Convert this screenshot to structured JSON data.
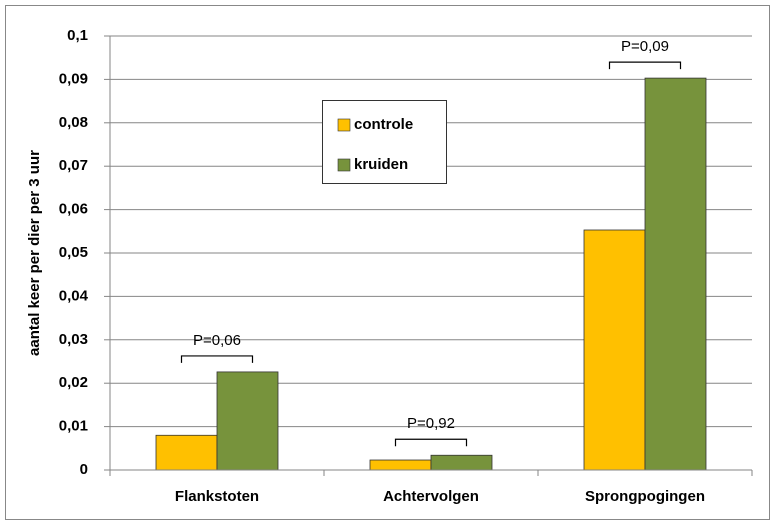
{
  "chart_data": {
    "type": "bar",
    "y_label": "aantal keer per dier per 3 uur",
    "categories": [
      "Flankstoten",
      "Achtervolgen",
      "Sprongpogingen"
    ],
    "series": [
      {
        "name": "controle",
        "color": "#ffc000",
        "values": [
          0.008,
          0.0023,
          0.0553
        ]
      },
      {
        "name": "kruiden",
        "color": "#77933c",
        "values": [
          0.0226,
          0.0034,
          0.0903
        ]
      }
    ],
    "p_labels": [
      "P=0,06",
      "P=0,92",
      "P=0,09"
    ],
    "ylim": [
      0,
      0.1
    ],
    "yticks": [
      0,
      {
        "value": 0.01,
        "label": "0,01"
      },
      {
        "value": 0.02,
        "label": "0,02"
      },
      {
        "value": 0.03,
        "label": "0,03"
      },
      {
        "value": 0.04,
        "label": "0,04"
      },
      {
        "value": 0.05,
        "label": "0,05"
      },
      {
        "value": 0.06,
        "label": "0,06"
      },
      {
        "value": 0.07,
        "label": "0,07"
      },
      {
        "value": 0.08,
        "label": "0,08"
      },
      {
        "value": 0.09,
        "label": "0,09"
      },
      {
        "value": 0.1,
        "label": "0,1"
      }
    ],
    "grid": true
  }
}
